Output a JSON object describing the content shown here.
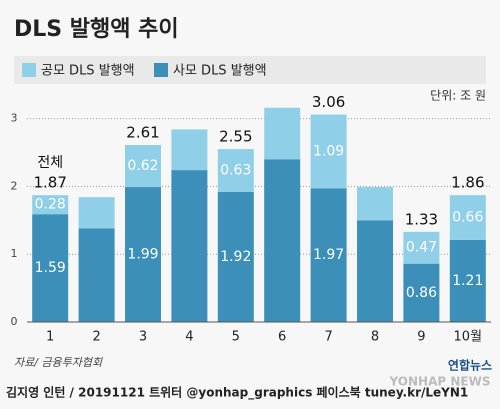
{
  "chart_data": {
    "type": "stacked_bar",
    "title": "DLS 발행액 추이",
    "unit": "단위: 조 원",
    "annotation": "전체",
    "categories": [
      "1",
      "2",
      "3",
      "4",
      "5",
      "6",
      "7",
      "8",
      "9",
      "10월"
    ],
    "series": [
      {
        "name": "사모 DLS 발행액",
        "color": "#3b8fb8",
        "values": [
          1.59,
          1.38,
          1.99,
          2.24,
          1.92,
          2.4,
          1.97,
          1.5,
          0.86,
          1.21
        ],
        "value_labels": [
          "1.59",
          null,
          "1.99",
          null,
          "1.92",
          null,
          "1.97",
          null,
          "0.86",
          "1.21"
        ]
      },
      {
        "name": "공모 DLS 발행액",
        "color": "#90cfe8",
        "values": [
          0.28,
          0.46,
          0.62,
          0.6,
          0.63,
          0.76,
          1.09,
          0.49,
          0.47,
          0.66
        ],
        "value_labels": [
          "0.28",
          null,
          "0.62",
          null,
          "0.63",
          null,
          "1.09",
          null,
          "0.47",
          "0.66"
        ]
      }
    ],
    "total_labels": [
      "1.87",
      null,
      "2.61",
      null,
      "2.55",
      null,
      "3.06",
      null,
      "1.33",
      "1.86"
    ],
    "ylim": [
      0,
      3.2
    ],
    "yticks": [
      0,
      1,
      2,
      3
    ],
    "grid": true,
    "source": "자료/ 금융투자협회",
    "credit": "김지영 인턴 / 20191121 트위터 @yonhap_graphics  페이스북 tuney.kr/LeYN1",
    "logo": "연합뉴스",
    "logo_en": "YONHAP NEWS"
  }
}
